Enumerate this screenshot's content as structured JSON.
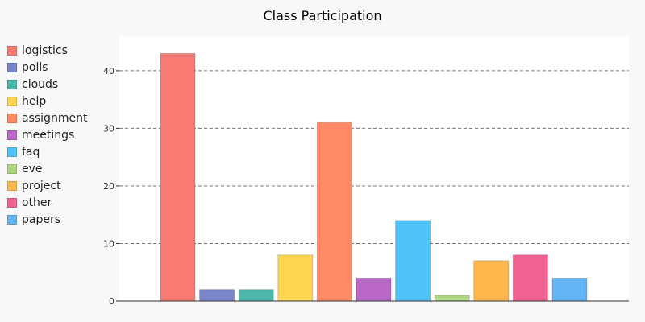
{
  "chart_data": {
    "type": "bar",
    "title": "Class Participation",
    "categories": [
      "logistics",
      "polls",
      "clouds",
      "help",
      "assignment",
      "meetings",
      "faq",
      "eve",
      "project",
      "other",
      "papers"
    ],
    "values": [
      43,
      2,
      2,
      8,
      31,
      4,
      14,
      1,
      7,
      8,
      4
    ],
    "colors": [
      "#f77b72",
      "#7986cb",
      "#4db6ac",
      "#ffd54f",
      "#ff8a65",
      "#ba68c8",
      "#4fc3f7",
      "#aed581",
      "#ffb74d",
      "#f06292",
      "#64b5f6"
    ],
    "ylim": [
      0,
      46
    ],
    "yticks": [
      0,
      10,
      20,
      30,
      40
    ],
    "xlabel": "",
    "ylabel": "",
    "grid": true,
    "legend": "left"
  }
}
